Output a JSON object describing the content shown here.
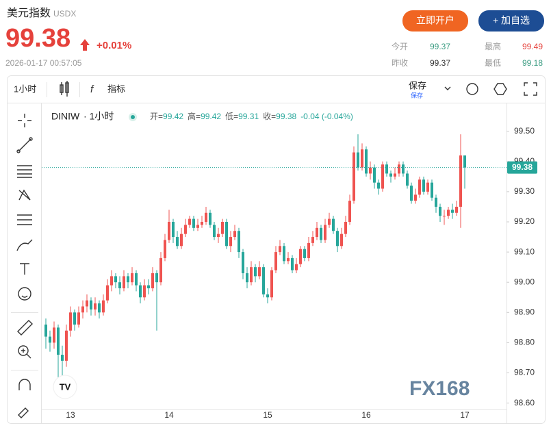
{
  "header": {
    "title": "美元指数",
    "code": "USDX",
    "price": "99.38",
    "change": "+0.01%",
    "time": "2026-01-17 00:57:05",
    "open_account": "立即开户",
    "add_watch": "+ 加自选",
    "stats": [
      {
        "label": "今开",
        "value": "99.37"
      },
      {
        "label": "最高",
        "value": "99.49"
      },
      {
        "label": "昨收",
        "value": "99.37"
      },
      {
        "label": "最低",
        "value": "99.18"
      }
    ]
  },
  "toolbar": {
    "interval": "1小时",
    "indicators": "指标",
    "save": "保存",
    "save_sub": "保存"
  },
  "legend": {
    "symbol": "DINIW",
    "interval": "· 1小时",
    "items": [
      {
        "label": "开=",
        "value": "99.42"
      },
      {
        "label": "高=",
        "value": "99.42"
      },
      {
        "label": "低=",
        "value": "99.31"
      },
      {
        "label": "收=",
        "value": "99.38"
      }
    ],
    "change": "-0.04 (-0.04%)"
  },
  "watermark": "FX168",
  "chart_data": {
    "type": "candlestick",
    "up_color": "#ef5350",
    "down_color": "#26a69a",
    "categories": [
      null,
      null,
      null,
      null,
      null,
      null,
      "13",
      null,
      null,
      null,
      null,
      null,
      null,
      null,
      null,
      null,
      null,
      null,
      null,
      null,
      null,
      null,
      null,
      null,
      null,
      null,
      null,
      null,
      null,
      null,
      "14",
      null,
      null,
      null,
      null,
      null,
      null,
      null,
      null,
      null,
      null,
      null,
      null,
      null,
      null,
      null,
      null,
      null,
      null,
      null,
      null,
      null,
      null,
      null,
      "15",
      null,
      null,
      null,
      null,
      null,
      null,
      null,
      null,
      null,
      null,
      null,
      null,
      null,
      null,
      null,
      null,
      null,
      null,
      null,
      null,
      null,
      null,
      null,
      "16",
      null,
      null,
      null,
      null,
      null,
      null,
      null,
      null,
      null,
      null,
      null,
      null,
      null,
      null,
      null,
      null,
      null,
      null,
      null,
      null,
      null,
      null,
      null,
      "17"
    ],
    "open": [
      98.86,
      98.82,
      98.8,
      98.85,
      98.76,
      98.74,
      98.84,
      98.9,
      98.86,
      98.9,
      98.92,
      98.94,
      98.91,
      98.93,
      98.9,
      98.94,
      98.99,
      99.02,
      99.0,
      98.98,
      99.02,
      99.0,
      99.03,
      98.99,
      98.95,
      98.99,
      98.98,
      99.03,
      99.0,
      99.08,
      99.14,
      99.2,
      99.15,
      99.12,
      99.16,
      99.19,
      99.21,
      99.18,
      99.19,
      99.2,
      99.23,
      99.19,
      99.15,
      99.16,
      99.2,
      99.12,
      99.15,
      99.17,
      99.1,
      99.03,
      99.0,
      99.05,
      99.02,
      99.05,
      98.96,
      98.95,
      99.04,
      99.1,
      99.12,
      99.07,
      99.08,
      99.04,
      99.06,
      99.11,
      99.08,
      99.13,
      99.15,
      99.18,
      99.14,
      99.19,
      99.21,
      99.17,
      99.12,
      99.16,
      99.2,
      99.27,
      99.43,
      99.38,
      99.44,
      99.36,
      99.38,
      99.33,
      99.31,
      99.39,
      99.36,
      99.35,
      99.36,
      99.39,
      99.36,
      99.32,
      99.27,
      99.29,
      99.34,
      99.3,
      99.33,
      99.28,
      99.25,
      99.22,
      99.22,
      99.24,
      99.23,
      99.25,
      99.42
    ],
    "high": [
      98.88,
      98.84,
      98.87,
      98.86,
      98.79,
      98.86,
      98.92,
      98.91,
      98.92,
      98.94,
      98.96,
      98.95,
      98.95,
      98.94,
      98.96,
      99.01,
      99.04,
      99.03,
      99.02,
      99.04,
      99.03,
      99.05,
      99.04,
      99.0,
      99.01,
      99.01,
      99.05,
      99.04,
      99.1,
      99.16,
      99.24,
      99.21,
      99.17,
      99.18,
      99.21,
      99.22,
      99.22,
      99.21,
      99.22,
      99.25,
      99.24,
      99.2,
      99.18,
      99.21,
      99.21,
      99.17,
      99.19,
      99.18,
      99.11,
      99.05,
      99.07,
      99.06,
      99.07,
      99.06,
      98.98,
      99.05,
      99.12,
      99.14,
      99.13,
      99.1,
      99.09,
      99.08,
      99.12,
      99.12,
      99.15,
      99.17,
      99.2,
      99.19,
      99.21,
      99.23,
      99.22,
      99.18,
      99.18,
      99.22,
      99.29,
      99.45,
      99.49,
      99.46,
      99.45,
      99.4,
      99.39,
      99.34,
      99.4,
      99.4,
      99.37,
      99.38,
      99.4,
      99.4,
      99.37,
      99.33,
      99.31,
      99.35,
      99.35,
      99.34,
      99.34,
      99.29,
      99.26,
      99.24,
      99.25,
      99.26,
      99.27,
      99.49,
      99.42
    ],
    "low": [
      98.78,
      98.77,
      98.78,
      98.68,
      98.69,
      98.72,
      98.82,
      98.84,
      98.85,
      98.88,
      98.9,
      98.89,
      98.89,
      98.88,
      98.89,
      98.93,
      98.97,
      98.98,
      98.96,
      98.97,
      98.98,
      98.99,
      98.97,
      98.93,
      98.94,
      98.96,
      98.97,
      98.84,
      98.99,
      99.07,
      99.13,
      99.13,
      99.11,
      99.11,
      99.15,
      99.18,
      99.17,
      99.17,
      99.18,
      99.19,
      99.18,
      99.14,
      99.13,
      99.15,
      99.11,
      99.1,
      99.14,
      99.08,
      99.01,
      98.98,
      98.99,
      99.0,
      99.01,
      98.95,
      98.93,
      98.94,
      99.03,
      99.09,
      99.06,
      99.06,
      99.03,
      99.03,
      99.05,
      99.07,
      99.07,
      99.12,
      99.14,
      99.13,
      99.13,
      99.18,
      99.16,
      99.1,
      99.11,
      99.15,
      99.19,
      99.26,
      99.37,
      99.37,
      99.35,
      99.34,
      99.31,
      99.29,
      99.3,
      99.35,
      99.33,
      99.34,
      99.35,
      99.35,
      99.31,
      99.26,
      99.26,
      99.28,
      99.29,
      99.29,
      99.27,
      99.23,
      99.2,
      99.19,
      99.21,
      99.21,
      99.22,
      99.18,
      99.31
    ],
    "close": [
      98.82,
      98.8,
      98.85,
      98.76,
      98.74,
      98.84,
      98.9,
      98.86,
      98.9,
      98.92,
      98.94,
      98.91,
      98.93,
      98.9,
      98.94,
      98.99,
      99.02,
      99.0,
      98.98,
      99.02,
      99.0,
      99.03,
      98.99,
      98.95,
      98.99,
      98.98,
      99.03,
      99.0,
      99.08,
      99.14,
      99.2,
      99.15,
      99.12,
      99.16,
      99.19,
      99.21,
      99.18,
      99.19,
      99.2,
      99.23,
      99.19,
      99.15,
      99.16,
      99.2,
      99.12,
      99.15,
      99.17,
      99.1,
      99.03,
      99.0,
      99.05,
      99.02,
      99.05,
      98.96,
      98.95,
      99.04,
      99.1,
      99.12,
      99.07,
      99.08,
      99.04,
      99.06,
      99.11,
      99.08,
      99.13,
      99.15,
      99.18,
      99.14,
      99.19,
      99.21,
      99.17,
      99.12,
      99.16,
      99.2,
      99.27,
      99.43,
      99.38,
      99.44,
      99.36,
      99.38,
      99.33,
      99.31,
      99.39,
      99.36,
      99.35,
      99.36,
      99.39,
      99.36,
      99.32,
      99.27,
      99.29,
      99.34,
      99.3,
      99.33,
      99.28,
      99.25,
      99.22,
      99.22,
      99.24,
      99.23,
      99.25,
      99.42,
      99.38
    ],
    "ylim": [
      98.59,
      99.59
    ],
    "yticks": [
      {
        "value": 98.6,
        "label": "98.60"
      },
      {
        "value": 98.7,
        "label": "98.70"
      },
      {
        "value": 98.8,
        "label": "98.80"
      },
      {
        "value": 98.9,
        "label": "98.90"
      },
      {
        "value": 99.0,
        "label": "99.00"
      },
      {
        "value": 99.1,
        "label": "99.10"
      },
      {
        "value": 99.2,
        "label": "99.20"
      },
      {
        "value": 99.3,
        "label": "99.30"
      },
      {
        "value": 99.4,
        "label": "99.40"
      },
      {
        "value": 99.5,
        "label": "99.50"
      }
    ],
    "grid": false,
    "price_line": {
      "value": 99.38,
      "label": "99.38"
    }
  }
}
